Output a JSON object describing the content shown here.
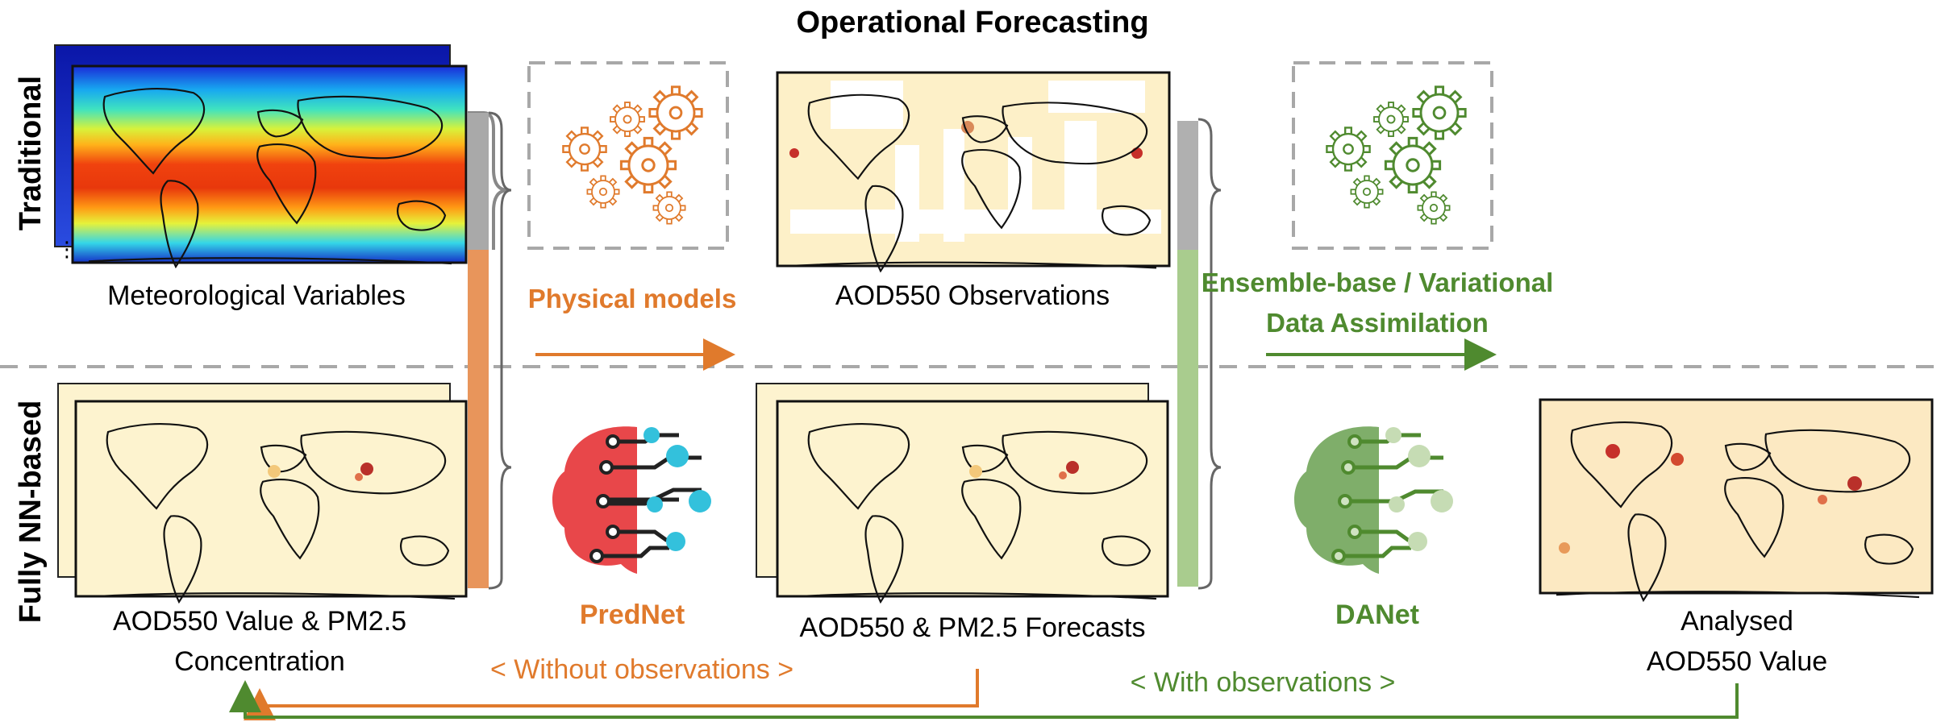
{
  "title": "Operational Forecasting",
  "rows": {
    "traditional": "Traditional",
    "nn": "Fully NN-based"
  },
  "labels": {
    "met_vars": "Meteorological Variables",
    "physical_models": "Physical models",
    "aod_obs": "AOD550 Observations",
    "da_line1": "Ensemble-base / Variational",
    "da_line2": "Data Assimilation",
    "aod_pm_line1": "AOD550 Value & PM2.5",
    "aod_pm_line2": "Concentration",
    "prednet": "PredNet",
    "forecasts": "AOD550 & PM2.5 Forecasts",
    "danet": "DANet",
    "analysed_line1": "Analysed",
    "analysed_line2": "AOD550 Value",
    "without_obs": "< Without observations >",
    "with_obs": "< With observations >"
  },
  "colors": {
    "orange": "#e07a2c",
    "green": "#4f8a2f",
    "prednet_red": "#e8474a",
    "prednet_cyan": "#33c1dc",
    "danet_green": "#7fae6a",
    "dashed_gray": "#a8a8a8",
    "map_bg": "#fdf3cf",
    "land_outline": "#111111"
  },
  "icons": {
    "gears_orange": "gears-icon",
    "gears_green": "gears-icon",
    "prednet": "brain-circuit-icon",
    "danet": "brain-circuit-icon"
  }
}
